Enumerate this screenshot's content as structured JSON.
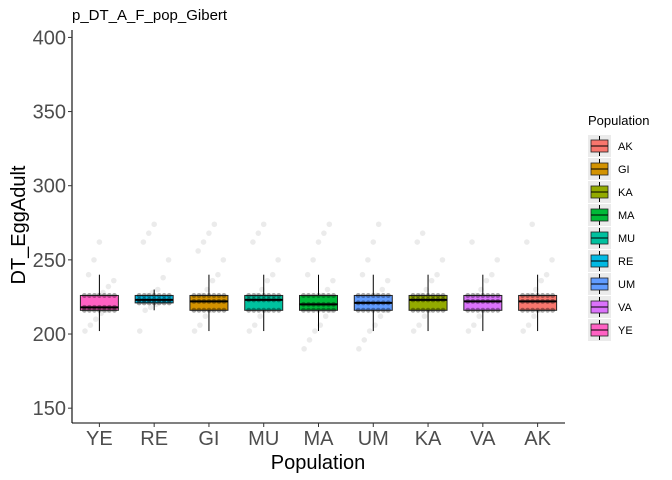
{
  "chart_data": {
    "type": "box",
    "title": "p_DT_A_F_pop_Gibert",
    "xlabel": "Population",
    "ylabel": "DT_EggAdult",
    "ylim": [
      140,
      405
    ],
    "yticks": [
      150,
      200,
      250,
      300,
      350,
      400
    ],
    "categories": [
      "YE",
      "RE",
      "GI",
      "MU",
      "MA",
      "UM",
      "KA",
      "VA",
      "AK"
    ],
    "colors": {
      "AK": "#F8766D",
      "GI": "#D39200",
      "KA": "#93AA00",
      "MA": "#00BA38",
      "MU": "#00C19F",
      "RE": "#00B9E3",
      "UM": "#619CFF",
      "VA": "#DB72FB",
      "YE": "#FF61C3"
    },
    "boxes": [
      {
        "population": "YE",
        "whisker_low": 202,
        "q1": 216,
        "median": 218,
        "q3": 226,
        "whisker_high": 240,
        "points": [
          202,
          206,
          210,
          214,
          216,
          218,
          220,
          222,
          226,
          228,
          232,
          236,
          240,
          250,
          262
        ]
      },
      {
        "population": "RE",
        "whisker_low": 216,
        "q1": 221,
        "median": 223,
        "q3": 226,
        "whisker_high": 230,
        "points": [
          202,
          216,
          218,
          220,
          222,
          223,
          224,
          226,
          228,
          230,
          238,
          250,
          262,
          268,
          274
        ]
      },
      {
        "population": "GI",
        "whisker_low": 202,
        "q1": 216,
        "median": 222,
        "q3": 226,
        "whisker_high": 240,
        "points": [
          202,
          206,
          212,
          216,
          218,
          222,
          224,
          226,
          230,
          236,
          240,
          250,
          256,
          262,
          268,
          274
        ]
      },
      {
        "population": "MU",
        "whisker_low": 202,
        "q1": 216,
        "median": 223,
        "q3": 226,
        "whisker_high": 240,
        "points": [
          202,
          206,
          212,
          216,
          218,
          223,
          224,
          226,
          230,
          236,
          240,
          250,
          262,
          268,
          274
        ]
      },
      {
        "population": "MA",
        "whisker_low": 202,
        "q1": 216,
        "median": 220,
        "q3": 226,
        "whisker_high": 240,
        "points": [
          190,
          196,
          202,
          206,
          212,
          216,
          218,
          220,
          224,
          226,
          230,
          236,
          240,
          250,
          262,
          268,
          274
        ]
      },
      {
        "population": "UM",
        "whisker_low": 202,
        "q1": 216,
        "median": 221,
        "q3": 226,
        "whisker_high": 240,
        "points": [
          190,
          196,
          202,
          206,
          212,
          216,
          218,
          221,
          224,
          226,
          230,
          236,
          240,
          250,
          262,
          274
        ]
      },
      {
        "population": "KA",
        "whisker_low": 202,
        "q1": 216,
        "median": 223,
        "q3": 226,
        "whisker_high": 240,
        "points": [
          202,
          206,
          212,
          216,
          218,
          223,
          224,
          226,
          230,
          236,
          240,
          250,
          262,
          268
        ]
      },
      {
        "population": "VA",
        "whisker_low": 202,
        "q1": 216,
        "median": 222,
        "q3": 226,
        "whisker_high": 240,
        "points": [
          202,
          206,
          212,
          216,
          218,
          222,
          224,
          226,
          230,
          236,
          240,
          250,
          262
        ]
      },
      {
        "population": "AK",
        "whisker_low": 202,
        "q1": 216,
        "median": 222,
        "q3": 226,
        "whisker_high": 240,
        "points": [
          202,
          206,
          212,
          216,
          218,
          222,
          224,
          226,
          230,
          236,
          240,
          250,
          262,
          274
        ]
      }
    ],
    "legend": {
      "title": "Population",
      "entries": [
        "AK",
        "GI",
        "KA",
        "MA",
        "MU",
        "RE",
        "UM",
        "VA",
        "YE"
      ],
      "placement": "right"
    },
    "grid": false
  }
}
